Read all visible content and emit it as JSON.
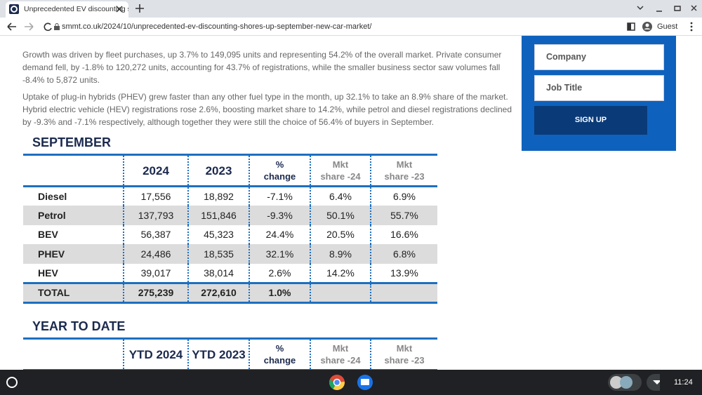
{
  "browser": {
    "tab_title": "Unprecedented EV discounting s",
    "url": "smmt.co.uk/2024/10/unprecedented-ev-discounting-shores-up-september-new-car-market/",
    "profile": "Guest"
  },
  "article": {
    "paragraphs": [
      "Growth was driven by fleet purchases, up 3.7% to 149,095 units and representing 54.2% of the overall market. Private consumer demand fell, by -1.8% to 120,272 units, accounting for 43.7% of registrations, while the smaller business sector saw volumes fall -8.4% to 5,872 units.",
      "Uptake of plug-in hybrids (PHEV) grew faster than any other fuel type in the month, up 32.1% to take an 8.9% share of the market. Hybrid electric vehicle (HEV) registrations rose 2.6%, boosting market share to 14.2%, while petrol and diesel registrations declined by -9.3% and -7.1% respectively, although together they were still the choice of 56.4% of buyers in September."
    ]
  },
  "signup": {
    "fields": [
      "Company",
      "Job Title"
    ],
    "button": "SIGN UP"
  },
  "tables": [
    {
      "title": "SEPTEMBER",
      "headers": [
        [
          "2024"
        ],
        [
          "2023"
        ],
        [
          "%",
          "change"
        ],
        [
          "Mkt",
          "share -24"
        ],
        [
          "Mkt",
          "share -23"
        ]
      ],
      "rows": [
        [
          "Diesel",
          "17,556",
          "18,892",
          "-7.1%",
          "6.4%",
          "6.9%"
        ],
        [
          "Petrol",
          "137,793",
          "151,846",
          "-9.3%",
          "50.1%",
          "55.7%"
        ],
        [
          "BEV",
          "56,387",
          "45,323",
          "24.4%",
          "20.5%",
          "16.6%"
        ],
        [
          "PHEV",
          "24,486",
          "18,535",
          "32.1%",
          "8.9%",
          "6.8%"
        ],
        [
          "HEV",
          "39,017",
          "38,014",
          "2.6%",
          "14.2%",
          "13.9%"
        ],
        [
          "TOTAL",
          "275,239",
          "272,610",
          "1.0%"
        ]
      ]
    },
    {
      "title": "YEAR TO DATE",
      "headers": [
        [
          "YTD 2024"
        ],
        [
          "YTD 2023"
        ],
        [
          "%",
          "change"
        ],
        [
          "Mkt",
          "share -24"
        ],
        [
          "Mkt",
          "share -23"
        ]
      ],
      "rows": []
    }
  ],
  "taskbar": {
    "time": "11:24"
  }
}
